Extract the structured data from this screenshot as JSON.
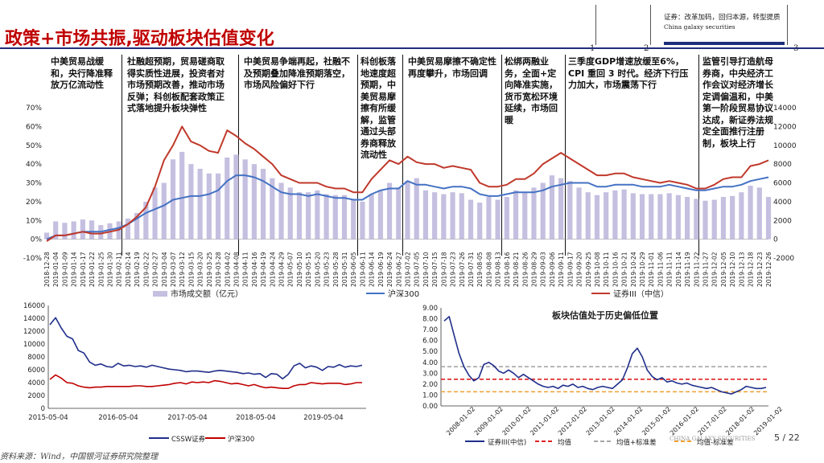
{
  "title": "政策+市场共振,驱动板块估值变化",
  "header": {
    "text_cn": "证券：改革加码，回归本源，转型提质",
    "text_en": "China galaxy securities",
    "nums": [
      "1",
      "2",
      "3"
    ]
  },
  "annotations": [
    "中美贸易战缓和，央行降准释放万亿流动性",
    "社融超预期，贸易磋商取得实质性进展，投资者对市场预期改善，推动市场反弹；科创板配套政策正式落地提升板块弹性",
    "中美贸易争端再起，社融不及预期叠加降准预期落空，市场风险偏好下行",
    "科创板落地速度超预期，中美贸易摩擦有所缓解，监管通过头部券商释放流动性",
    "中美贸易摩擦不确定性再度攀升，市场回调",
    "松绑两融业务，全面+定向降准实施，货币宽松环境延续，市场回暖",
    "三季度GDP增速放缓至6%，CPI 重回 3 时代。经济下行压力加大，市场震荡下行",
    "监管引导打造航母券商，中央经济工作会议对经济增长定调偏温和，中美第一阶段贸易协议达成，新证券法规定全面推行注册制，板块上行"
  ],
  "colors": {
    "title_red": "#c00000",
    "navy": "#1f2e7a",
    "bar_lavender": "#c5bfe0",
    "hs300_blue": "#4472c4",
    "securities_red": "#c0392b",
    "line_navy": "#1f2e8a",
    "line_red": "#c00000",
    "mean_red": "#e02020",
    "std_gray": "#a6a6a6",
    "std_orange": "#f0a030"
  },
  "chart_data": [
    {
      "type": "bar+line",
      "title": "",
      "x_tick_labels": [
        "2018-12-28",
        "2019-01-04",
        "2019-01-09",
        "2019-01-14",
        "2019-01-17",
        "2019-01-22",
        "2019-01-25",
        "2019-01-30",
        "2019-02-11",
        "2019-02-14",
        "2019-02-19",
        "2019-02-22",
        "2019-02-27",
        "2019-03-04",
        "2019-03-07",
        "2019-03-12",
        "2019-03-15",
        "2019-03-20",
        "2019-03-25",
        "2019-03-28",
        "2019-04-02",
        "2019-04-08",
        "2019-04-11",
        "2019-04-16",
        "2019-04-19",
        "2019-04-24",
        "2019-04-29",
        "2019-05-07",
        "2019-05-10",
        "2019-05-15",
        "2019-05-20",
        "2019-05-23",
        "2019-05-28",
        "2019-05-31",
        "2019-06-05",
        "2019-06-11",
        "2019-06-14",
        "2019-06-19",
        "2019-06-24",
        "2019-06-27",
        "2019-07-02",
        "2019-07-05",
        "2019-07-10",
        "2019-07-15",
        "2019-07-18",
        "2019-07-23",
        "2019-07-26",
        "2019-07-31",
        "2019-08-05",
        "2019-08-08",
        "2019-08-13",
        "2019-08-16",
        "2019-08-21",
        "2019-08-26",
        "2019-08-29",
        "2019-09-03",
        "2019-09-06",
        "2019-09-11",
        "2019-09-17",
        "2019-09-20",
        "2019-09-25",
        "2019-10-08",
        "2019-10-11",
        "2019-10-16",
        "2019-10-21",
        "2019-10-24",
        "2019-10-29",
        "2019-11-01",
        "2019-11-06",
        "2019-11-11",
        "2019-11-14",
        "2019-11-19",
        "2019-11-22",
        "2019-11-27",
        "2019-12-02",
        "2019-12-05",
        "2019-12-10",
        "2019-12-13",
        "2019-12-18",
        "2019-12-23",
        "2019-12-26"
      ],
      "left_axis": {
        "ticks": [
          "70%",
          "60%",
          "50%",
          "40%",
          "30%",
          "20%",
          "10%",
          "0%",
          "-10%"
        ],
        "ylim": [
          -10,
          70
        ]
      },
      "right_axis": {
        "ticks": [
          "14000",
          "12000",
          "10000",
          "8000",
          "6000",
          "4000",
          "2000",
          "0",
          "-2000"
        ],
        "ylim": [
          -2000,
          14000
        ]
      },
      "series": [
        {
          "name": "市场成交额（亿元）",
          "type": "bar",
          "axis": "right",
          "values": [
            700,
            1900,
            1750,
            1900,
            2100,
            2000,
            1500,
            1700,
            1900,
            2200,
            2800,
            4000,
            5500,
            6000,
            8500,
            9300,
            8000,
            7500,
            7000,
            7000,
            8700,
            9000,
            8500,
            8000,
            7500,
            6500,
            6000,
            5500,
            5000,
            5000,
            5200,
            4800,
            4700,
            4700,
            4200,
            4000,
            4800,
            5200,
            6000,
            5500,
            6200,
            6500,
            5200,
            5000,
            4800,
            5000,
            4900,
            4200,
            3900,
            4500,
            4200,
            4500,
            5200,
            5000,
            5500,
            6000,
            6800,
            6500,
            6200,
            5500,
            5000,
            4700,
            5000,
            5200,
            5300,
            4900,
            4800,
            4800,
            4800,
            4900,
            4700,
            4500,
            4300,
            4100,
            4200,
            4500,
            4600,
            5000,
            5700,
            5500,
            4500
          ]
        },
        {
          "name": "沪深300",
          "type": "line",
          "axis": "left",
          "values": [
            0,
            2,
            2,
            3,
            4,
            4,
            4,
            5,
            6,
            8,
            11,
            14,
            16,
            18,
            21,
            22,
            23,
            23,
            24,
            26,
            31,
            34,
            34,
            33,
            31,
            28,
            25,
            24,
            24,
            23,
            24,
            23,
            22,
            22,
            21,
            21,
            24,
            26,
            27,
            27,
            31,
            29,
            29,
            28,
            27,
            28,
            28,
            27,
            24,
            23,
            23,
            24,
            25,
            25,
            25,
            26,
            28,
            29,
            30,
            30,
            30,
            28,
            28,
            29,
            29,
            29,
            28,
            28,
            28,
            29,
            28,
            27,
            26,
            26,
            27,
            28,
            28,
            29,
            31,
            32,
            33
          ]
        },
        {
          "name": "证券III（中信）",
          "type": "line",
          "axis": "left",
          "values": [
            -1,
            2,
            2,
            3,
            4,
            3,
            3,
            4,
            5,
            8,
            12,
            17,
            28,
            42,
            50,
            60,
            52,
            50,
            47,
            46,
            58,
            55,
            51,
            48,
            44,
            40,
            34,
            32,
            30,
            30,
            30,
            28,
            27,
            27,
            25,
            25,
            32,
            37,
            42,
            40,
            44,
            41,
            40,
            40,
            38,
            39,
            38,
            37,
            30,
            28,
            28,
            29,
            32,
            32,
            35,
            40,
            43,
            46,
            43,
            40,
            37,
            34,
            34,
            35,
            35,
            33,
            32,
            31,
            30,
            31,
            30,
            29,
            27,
            27,
            29,
            32,
            33,
            33,
            39,
            40,
            42
          ]
        }
      ]
    },
    {
      "type": "line",
      "title": "",
      "x_tick_labels": [
        "2015-05-04",
        "2016-05-04",
        "2017-05-04",
        "2018-05-04",
        "2019-05-04"
      ],
      "y_ticks": [
        "16000",
        "14000",
        "12000",
        "10000",
        "8000",
        "6000",
        "4000",
        "2000",
        "0"
      ],
      "ylim": [
        0,
        16000
      ],
      "series": [
        {
          "name": "CSSW证券",
          "values": [
            13000,
            14100,
            12500,
            11200,
            10800,
            9000,
            8600,
            7200,
            6700,
            6900,
            6500,
            6400,
            7000,
            6600,
            6700,
            6500,
            6600,
            6400,
            6700,
            6500,
            6300,
            6100,
            6000,
            5900,
            5700,
            5800,
            5800,
            5700,
            5600,
            5800,
            5900,
            5800,
            5700,
            5600,
            5400,
            5500,
            5300,
            5400,
            4800,
            5400,
            5300,
            4600,
            5300,
            6600,
            7000,
            6300,
            6600,
            6400,
            5900,
            6500,
            6400,
            6800,
            6400,
            6600,
            6500,
            6700
          ]
        },
        {
          "name": "沪深300",
          "values": [
            4500,
            5200,
            4700,
            4000,
            3900,
            3500,
            3300,
            3200,
            3300,
            3300,
            3400,
            3400,
            3400,
            3400,
            3400,
            3500,
            3500,
            3400,
            3400,
            3500,
            3600,
            3700,
            3900,
            4000,
            3800,
            4100,
            4000,
            4100,
            4000,
            4300,
            4200,
            4000,
            3800,
            3900,
            3700,
            3500,
            3700,
            3400,
            3200,
            3300,
            3200,
            3100,
            3100,
            3500,
            3700,
            3700,
            4000,
            3900,
            3800,
            3900,
            3900,
            3900,
            3700,
            3800,
            4000,
            4000
          ]
        }
      ]
    },
    {
      "type": "line",
      "title": "板块估值处于历史偏低位置",
      "x_tick_labels": [
        "2008-01-02",
        "2009-01-02",
        "2010-01-02",
        "2011-01-02",
        "2012-01-02",
        "2013-01-02",
        "2014-01-02",
        "2015-01-02",
        "2016-01-02",
        "2017-01-02",
        "2018-01-02",
        "2019-01-02"
      ],
      "y_ticks": [
        "9.00",
        "8.00",
        "7.00",
        "6.00",
        "5.00",
        "4.00",
        "3.00",
        "2.00",
        "1.00",
        "0.00"
      ],
      "ylim": [
        0,
        9
      ],
      "series": [
        {
          "name": "证券III(中信)",
          "values": [
            7.8,
            8.2,
            6.5,
            4.8,
            3.6,
            2.8,
            2.3,
            2.6,
            3.8,
            4.0,
            3.7,
            3.2,
            3.0,
            3.3,
            3.0,
            2.6,
            2.9,
            2.6,
            2.3,
            2.0,
            1.8,
            1.7,
            1.8,
            1.6,
            1.9,
            1.8,
            2.0,
            1.7,
            1.8,
            1.6,
            1.5,
            1.7,
            1.8,
            1.7,
            1.6,
            2.0,
            2.4,
            3.5,
            4.8,
            5.3,
            4.5,
            3.3,
            2.7,
            2.4,
            2.6,
            2.2,
            2.3,
            2.1,
            2.0,
            2.1,
            1.9,
            1.8,
            1.7,
            1.6,
            1.7,
            1.5,
            1.3,
            1.2,
            1.1,
            1.3,
            1.5,
            1.8,
            1.7,
            1.6,
            1.6,
            1.7
          ]
        },
        {
          "name": "均值",
          "values": [
            2.45
          ]
        },
        {
          "name": "均值+标准差",
          "values": [
            3.6
          ]
        },
        {
          "name": "均值-标准差",
          "values": [
            1.3
          ]
        }
      ]
    }
  ],
  "legend1": {
    "bars": "市场成交额（亿元）",
    "hs300": "沪深300",
    "sec": "证券III（中信）"
  },
  "legend2": {
    "cssw": "CSSW证券",
    "hs300": "沪深300"
  },
  "legend3": {
    "sec": "证券III(中信)",
    "mean": "均值",
    "plus": "均值+标准差",
    "minus": "均值-标准差"
  },
  "footer": "资料来源：Wind，中国银河证券研究院整理",
  "watermark": "CHINA GALAXY SECURITIES",
  "page": "5 / 22"
}
